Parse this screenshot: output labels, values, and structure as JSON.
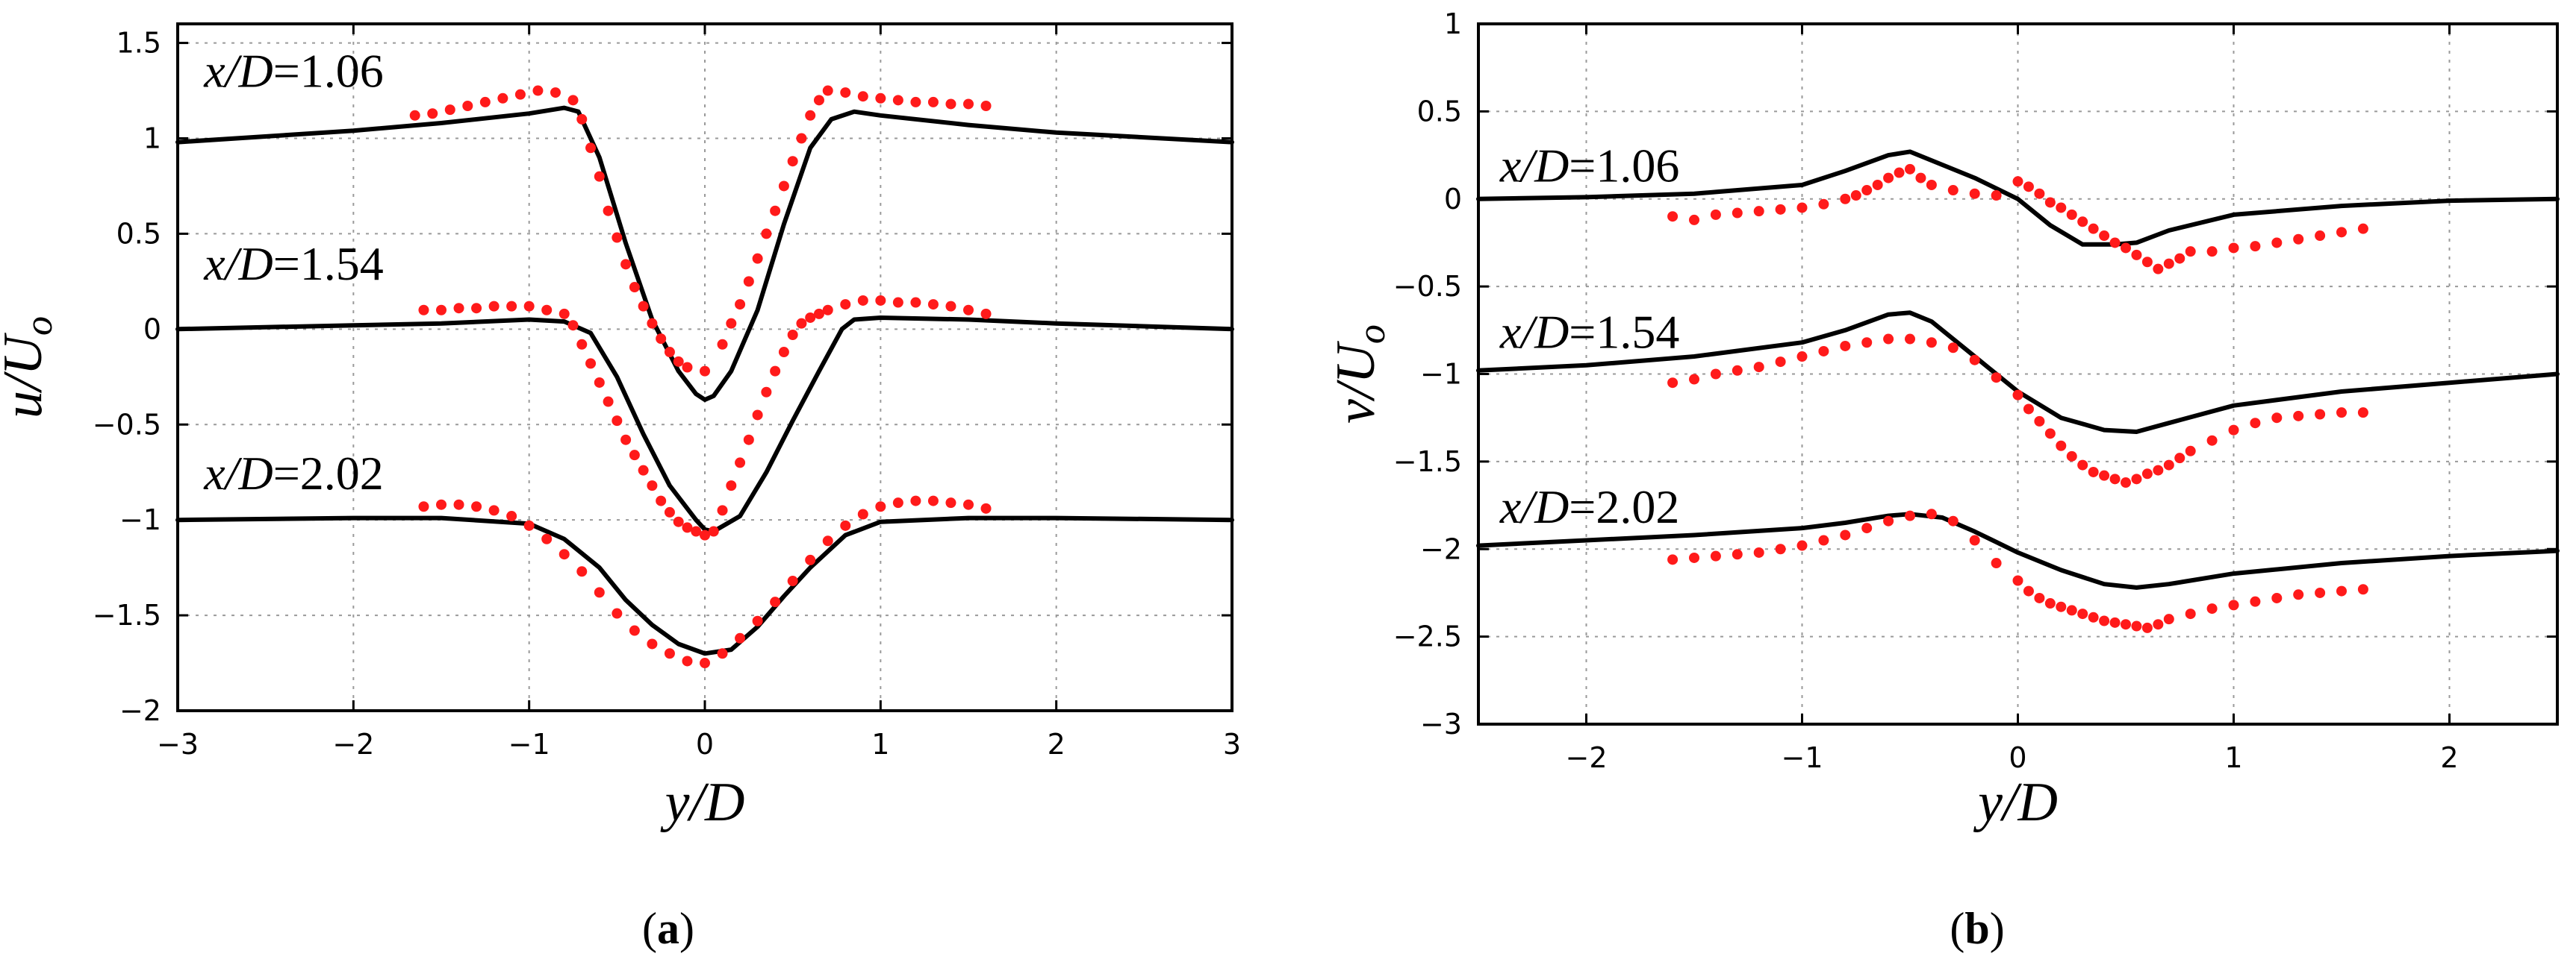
{
  "figure": {
    "panel_a_label": "a",
    "panel_b_label": "b",
    "colors": {
      "simulation": "#000000",
      "experiment": "#ff1a1a",
      "grid": "#9a9a9a"
    }
  },
  "chart_data": [
    {
      "type": "line",
      "panel": "a",
      "xlabel": "y/D",
      "ylabel": "u/U_o",
      "xlim": [
        -3,
        3
      ],
      "ylim": [
        -2,
        1.6
      ],
      "xticks": [
        -3,
        -2,
        -1,
        0,
        1,
        2,
        3
      ],
      "yticks": [
        -2,
        -1.5,
        -1,
        -0.5,
        0,
        0.5,
        1,
        1.5
      ],
      "xtick_labels": [
        "−3",
        "−2",
        "−1",
        "0",
        "1",
        "2",
        "3"
      ],
      "ytick_labels": [
        "−2",
        "−1.5",
        "−1",
        "−0.5",
        "0",
        "0.5",
        "1",
        "1.5"
      ],
      "grid": true,
      "annotations": [
        {
          "text": "x/D=1.06",
          "x": -2.85,
          "y": 1.27
        },
        {
          "text": "x/D=1.54",
          "x": -2.85,
          "y": 0.26
        },
        {
          "text": "x/D=2.02",
          "x": -2.85,
          "y": -0.84
        }
      ],
      "series": [
        {
          "name": "Simulation x/D=1.06",
          "style": "line",
          "x": [
            -3,
            -2,
            -1.5,
            -1,
            -0.8,
            -0.72,
            -0.6,
            -0.45,
            -0.3,
            -0.15,
            -0.05,
            0,
            0.05,
            0.15,
            0.3,
            0.45,
            0.6,
            0.72,
            0.85,
            1,
            1.5,
            2,
            3
          ],
          "y": [
            0.98,
            1.04,
            1.08,
            1.13,
            1.16,
            1.14,
            0.9,
            0.45,
            0.05,
            -0.22,
            -0.34,
            -0.37,
            -0.35,
            -0.22,
            0.1,
            0.55,
            0.95,
            1.1,
            1.14,
            1.12,
            1.07,
            1.03,
            0.98
          ]
        },
        {
          "name": "Experiment x/D=1.06",
          "style": "dots",
          "x": [
            -1.65,
            -1.55,
            -1.45,
            -1.35,
            -1.25,
            -1.15,
            -1.05,
            -0.95,
            -0.85,
            -0.75,
            -0.7,
            -0.65,
            -0.6,
            -0.55,
            -0.5,
            -0.45,
            -0.4,
            -0.35,
            -0.3,
            -0.25,
            -0.2,
            -0.15,
            -0.1,
            0,
            0.1,
            0.15,
            0.2,
            0.25,
            0.3,
            0.35,
            0.4,
            0.45,
            0.5,
            0.55,
            0.6,
            0.65,
            0.7,
            0.8,
            0.9,
            1.0,
            1.1,
            1.2,
            1.3,
            1.4,
            1.5,
            1.6
          ],
          "y": [
            1.12,
            1.13,
            1.15,
            1.17,
            1.19,
            1.21,
            1.23,
            1.25,
            1.24,
            1.2,
            1.1,
            0.95,
            0.8,
            0.62,
            0.48,
            0.34,
            0.22,
            0.12,
            0.03,
            -0.05,
            -0.12,
            -0.17,
            -0.2,
            -0.22,
            -0.08,
            0.03,
            0.13,
            0.25,
            0.37,
            0.5,
            0.62,
            0.75,
            0.88,
            1.0,
            1.12,
            1.2,
            1.25,
            1.24,
            1.22,
            1.21,
            1.2,
            1.19,
            1.19,
            1.18,
            1.18,
            1.17
          ]
        },
        {
          "name": "Simulation x/D=1.54",
          "style": "line",
          "x": [
            -3,
            -2,
            -1.5,
            -1,
            -0.8,
            -0.65,
            -0.5,
            -0.35,
            -0.2,
            -0.05,
            0,
            0.05,
            0.2,
            0.35,
            0.5,
            0.65,
            0.78,
            0.85,
            1,
            1.5,
            2,
            3
          ],
          "y": [
            0,
            0.02,
            0.03,
            0.05,
            0.04,
            -0.02,
            -0.25,
            -0.55,
            -0.82,
            -1.0,
            -1.05,
            -1.06,
            -0.98,
            -0.75,
            -0.48,
            -0.22,
            0.0,
            0.05,
            0.06,
            0.05,
            0.03,
            0
          ]
        },
        {
          "name": "Experiment x/D=1.54",
          "style": "dots",
          "x": [
            -1.6,
            -1.5,
            -1.4,
            -1.3,
            -1.2,
            -1.1,
            -1.0,
            -0.9,
            -0.8,
            -0.75,
            -0.7,
            -0.65,
            -0.6,
            -0.55,
            -0.5,
            -0.45,
            -0.4,
            -0.35,
            -0.3,
            -0.25,
            -0.2,
            -0.15,
            -0.1,
            -0.05,
            0,
            0.05,
            0.1,
            0.15,
            0.2,
            0.25,
            0.3,
            0.35,
            0.4,
            0.45,
            0.5,
            0.55,
            0.6,
            0.65,
            0.7,
            0.8,
            0.9,
            1.0,
            1.1,
            1.2,
            1.3,
            1.4,
            1.5,
            1.6
          ],
          "y": [
            0.1,
            0.1,
            0.11,
            0.11,
            0.12,
            0.12,
            0.12,
            0.1,
            0.08,
            0.02,
            -0.08,
            -0.18,
            -0.28,
            -0.38,
            -0.48,
            -0.58,
            -0.66,
            -0.74,
            -0.82,
            -0.9,
            -0.96,
            -1.01,
            -1.04,
            -1.06,
            -1.08,
            -1.06,
            -0.95,
            -0.82,
            -0.7,
            -0.58,
            -0.45,
            -0.33,
            -0.22,
            -0.12,
            -0.03,
            0.03,
            0.06,
            0.08,
            0.1,
            0.13,
            0.15,
            0.15,
            0.14,
            0.14,
            0.13,
            0.12,
            0.1,
            0.08
          ]
        },
        {
          "name": "Simulation x/D=2.02",
          "style": "line",
          "x": [
            -3,
            -2,
            -1.5,
            -1,
            -0.8,
            -0.6,
            -0.45,
            -0.3,
            -0.15,
            0,
            0.15,
            0.3,
            0.45,
            0.6,
            0.8,
            1,
            1.5,
            2,
            3
          ],
          "y": [
            -1,
            -0.99,
            -0.99,
            -1.02,
            -1.1,
            -1.25,
            -1.42,
            -1.55,
            -1.65,
            -1.7,
            -1.68,
            -1.56,
            -1.4,
            -1.25,
            -1.08,
            -1.01,
            -0.99,
            -0.99,
            -1
          ]
        },
        {
          "name": "Experiment x/D=2.02",
          "style": "dots",
          "x": [
            -1.6,
            -1.5,
            -1.4,
            -1.3,
            -1.2,
            -1.1,
            -1.0,
            -0.9,
            -0.8,
            -0.7,
            -0.6,
            -0.5,
            -0.4,
            -0.3,
            -0.2,
            -0.1,
            0,
            0.1,
            0.2,
            0.3,
            0.4,
            0.5,
            0.6,
            0.7,
            0.8,
            0.9,
            1.0,
            1.1,
            1.2,
            1.3,
            1.4,
            1.5,
            1.6
          ],
          "y": [
            -0.93,
            -0.92,
            -0.92,
            -0.93,
            -0.95,
            -0.98,
            -1.03,
            -1.1,
            -1.18,
            -1.27,
            -1.38,
            -1.49,
            -1.58,
            -1.65,
            -1.7,
            -1.74,
            -1.75,
            -1.7,
            -1.62,
            -1.53,
            -1.43,
            -1.32,
            -1.21,
            -1.11,
            -1.03,
            -0.97,
            -0.93,
            -0.91,
            -0.9,
            -0.9,
            -0.91,
            -0.92,
            -0.94
          ]
        }
      ]
    },
    {
      "type": "line",
      "panel": "b",
      "xlabel": "y/D",
      "ylabel": "v/U_o",
      "xlim": [
        -2.5,
        2.5
      ],
      "ylim": [
        -3,
        1
      ],
      "xticks": [
        -2,
        -1,
        0,
        1,
        2
      ],
      "yticks": [
        -3,
        -2.5,
        -2,
        -1.5,
        -1,
        -0.5,
        0,
        0.5,
        1
      ],
      "xtick_labels": [
        "−2",
        "−1",
        "0",
        "1",
        "2"
      ],
      "ytick_labels": [
        "−3",
        "−2.5",
        "−2",
        "−1.5",
        "−1",
        "−0.5",
        "0",
        "0.5",
        "1"
      ],
      "grid": true,
      "annotations": [
        {
          "text": "x/D=1.06",
          "x": -2.4,
          "y": 0.1
        },
        {
          "text": "x/D=1.54",
          "x": -2.4,
          "y": -0.85
        },
        {
          "text": "x/D=2.02",
          "x": -2.4,
          "y": -1.85
        }
      ],
      "series": [
        {
          "name": "Simulation x/D=1.06",
          "style": "line",
          "x": [
            -2.5,
            -2,
            -1.5,
            -1,
            -0.8,
            -0.6,
            -0.5,
            -0.4,
            -0.2,
            0,
            0.15,
            0.3,
            0.45,
            0.55,
            0.7,
            1,
            1.5,
            2,
            2.5
          ],
          "y": [
            0,
            0.01,
            0.03,
            0.08,
            0.16,
            0.25,
            0.27,
            0.22,
            0.12,
            0,
            -0.15,
            -0.26,
            -0.26,
            -0.25,
            -0.18,
            -0.09,
            -0.04,
            -0.01,
            0
          ]
        },
        {
          "name": "Experiment x/D=1.06",
          "style": "dots",
          "x": [
            -1.6,
            -1.5,
            -1.4,
            -1.3,
            -1.2,
            -1.1,
            -1.0,
            -0.9,
            -0.8,
            -0.75,
            -0.7,
            -0.65,
            -0.6,
            -0.55,
            -0.5,
            -0.45,
            -0.4,
            -0.3,
            -0.2,
            -0.1,
            0,
            0.05,
            0.1,
            0.15,
            0.2,
            0.25,
            0.3,
            0.35,
            0.4,
            0.45,
            0.5,
            0.55,
            0.6,
            0.65,
            0.7,
            0.75,
            0.8,
            0.9,
            1.0,
            1.1,
            1.2,
            1.3,
            1.4,
            1.5,
            1.6
          ],
          "y": [
            -0.1,
            -0.12,
            -0.09,
            -0.08,
            -0.07,
            -0.06,
            -0.05,
            -0.03,
            0.0,
            0.02,
            0.05,
            0.08,
            0.12,
            0.15,
            0.17,
            0.12,
            0.08,
            0.05,
            0.03,
            0.02,
            0.1,
            0.07,
            0.03,
            -0.02,
            -0.05,
            -0.09,
            -0.13,
            -0.17,
            -0.21,
            -0.25,
            -0.28,
            -0.32,
            -0.36,
            -0.4,
            -0.37,
            -0.34,
            -0.3,
            -0.3,
            -0.28,
            -0.27,
            -0.25,
            -0.23,
            -0.21,
            -0.19,
            -0.17
          ]
        },
        {
          "name": "Simulation x/D=1.54",
          "style": "line",
          "x": [
            -2.5,
            -2,
            -1.5,
            -1,
            -0.8,
            -0.6,
            -0.5,
            -0.4,
            -0.2,
            0,
            0.2,
            0.4,
            0.55,
            0.7,
            1,
            1.5,
            2,
            2.5
          ],
          "y": [
            -0.98,
            -0.95,
            -0.9,
            -0.82,
            -0.75,
            -0.66,
            -0.65,
            -0.7,
            -0.9,
            -1.1,
            -1.25,
            -1.32,
            -1.33,
            -1.28,
            -1.18,
            -1.1,
            -1.05,
            -1.0
          ]
        },
        {
          "name": "Experiment x/D=1.54",
          "style": "dots",
          "x": [
            -1.6,
            -1.5,
            -1.4,
            -1.3,
            -1.2,
            -1.1,
            -1.0,
            -0.9,
            -0.8,
            -0.7,
            -0.6,
            -0.5,
            -0.4,
            -0.3,
            -0.2,
            -0.1,
            0,
            0.05,
            0.1,
            0.15,
            0.2,
            0.25,
            0.3,
            0.35,
            0.4,
            0.45,
            0.5,
            0.55,
            0.6,
            0.65,
            0.7,
            0.75,
            0.8,
            0.9,
            1.0,
            1.1,
            1.2,
            1.3,
            1.4,
            1.5,
            1.6
          ],
          "y": [
            -1.05,
            -1.03,
            -1.0,
            -0.98,
            -0.96,
            -0.93,
            -0.9,
            -0.87,
            -0.84,
            -0.82,
            -0.8,
            -0.8,
            -0.82,
            -0.85,
            -0.92,
            -1.02,
            -1.12,
            -1.2,
            -1.27,
            -1.34,
            -1.41,
            -1.47,
            -1.52,
            -1.56,
            -1.58,
            -1.6,
            -1.62,
            -1.6,
            -1.57,
            -1.55,
            -1.52,
            -1.48,
            -1.44,
            -1.38,
            -1.32,
            -1.28,
            -1.25,
            -1.24,
            -1.23,
            -1.22,
            -1.22
          ]
        },
        {
          "name": "Simulation x/D=2.02",
          "style": "line",
          "x": [
            -2.5,
            -2,
            -1.5,
            -1,
            -0.8,
            -0.6,
            -0.5,
            -0.35,
            -0.2,
            0,
            0.2,
            0.4,
            0.55,
            0.7,
            1,
            1.5,
            2,
            2.5
          ],
          "y": [
            -1.98,
            -1.95,
            -1.92,
            -1.88,
            -1.85,
            -1.81,
            -1.8,
            -1.82,
            -1.9,
            -2.02,
            -2.12,
            -2.2,
            -2.22,
            -2.2,
            -2.14,
            -2.08,
            -2.04,
            -2.01
          ]
        },
        {
          "name": "Experiment x/D=2.02",
          "style": "dots",
          "x": [
            -1.6,
            -1.5,
            -1.4,
            -1.3,
            -1.2,
            -1.1,
            -1.0,
            -0.9,
            -0.8,
            -0.7,
            -0.6,
            -0.5,
            -0.4,
            -0.3,
            -0.2,
            -0.1,
            0,
            0.05,
            0.1,
            0.15,
            0.2,
            0.25,
            0.3,
            0.35,
            0.4,
            0.45,
            0.5,
            0.55,
            0.6,
            0.65,
            0.7,
            0.8,
            0.9,
            1.0,
            1.1,
            1.2,
            1.3,
            1.4,
            1.5,
            1.6
          ],
          "y": [
            -2.06,
            -2.05,
            -2.04,
            -2.03,
            -2.02,
            -2.0,
            -1.98,
            -1.95,
            -1.92,
            -1.88,
            -1.84,
            -1.81,
            -1.8,
            -1.84,
            -1.95,
            -2.08,
            -2.18,
            -2.24,
            -2.28,
            -2.31,
            -2.33,
            -2.35,
            -2.37,
            -2.39,
            -2.41,
            -2.42,
            -2.43,
            -2.44,
            -2.45,
            -2.43,
            -2.4,
            -2.37,
            -2.34,
            -2.32,
            -2.3,
            -2.28,
            -2.26,
            -2.25,
            -2.24,
            -2.23
          ]
        }
      ]
    }
  ]
}
